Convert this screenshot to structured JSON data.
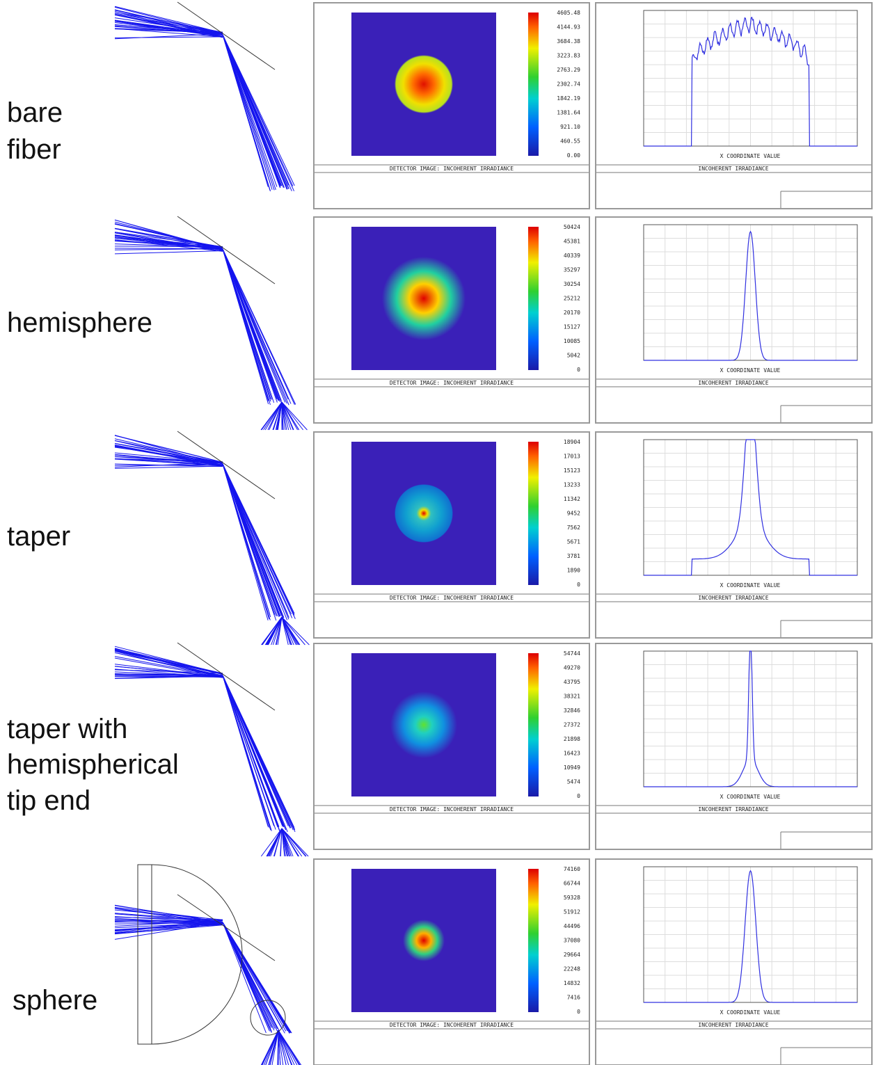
{
  "rows": [
    {
      "label": [
        "bare",
        "fiber"
      ],
      "colorbar_labels": [
        "4605.48",
        "4144.93",
        "3684.38",
        "3223.83",
        "2763.29",
        "2302.74",
        "1842.19",
        "1381.64",
        "921.10",
        "460.55",
        "0.00"
      ],
      "detector_caption": "DETECTOR IMAGE: INCOHERENT IRRADIANCE",
      "plot_caption": "INCOHERENT IRRADIANCE",
      "x_axis_label": "X COORDINATE VALUE"
    },
    {
      "label": [
        "hemisphere"
      ],
      "colorbar_labels": [
        "50424",
        "45381",
        "40339",
        "35297",
        "30254",
        "25212",
        "20170",
        "15127",
        "10085",
        "5042",
        "0"
      ],
      "detector_caption": "DETECTOR IMAGE: INCOHERENT IRRADIANCE",
      "plot_caption": "INCOHERENT IRRADIANCE",
      "x_axis_label": "X COORDINATE VALUE"
    },
    {
      "label": [
        "taper"
      ],
      "colorbar_labels": [
        "18904",
        "17013",
        "15123",
        "13233",
        "11342",
        "9452",
        "7562",
        "5671",
        "3781",
        "1890",
        "0"
      ],
      "detector_caption": "DETECTOR IMAGE: INCOHERENT IRRADIANCE",
      "plot_caption": "INCOHERENT IRRADIANCE",
      "x_axis_label": "X COORDINATE VALUE"
    },
    {
      "label": [
        "taper with",
        "hemispherical",
        "tip end"
      ],
      "colorbar_labels": [
        "54744",
        "49270",
        "43795",
        "38321",
        "32846",
        "27372",
        "21898",
        "16423",
        "10949",
        "5474",
        "0"
      ],
      "detector_caption": "DETECTOR IMAGE: INCOHERENT IRRADIANCE",
      "plot_caption": "INCOHERENT IRRADIANCE",
      "x_axis_label": "X COORDINATE VALUE"
    },
    {
      "label": [
        "sphere"
      ],
      "colorbar_labels": [
        "74160",
        "66744",
        "59328",
        "51912",
        "44496",
        "37080",
        "29664",
        "22248",
        "14832",
        "7416",
        "0"
      ],
      "detector_caption": "DETECTOR IMAGE: INCOHERENT IRRADIANCE",
      "plot_caption": "INCOHERENT IRRADIANCE",
      "x_axis_label": "X COORDINATE VALUE"
    }
  ]
}
